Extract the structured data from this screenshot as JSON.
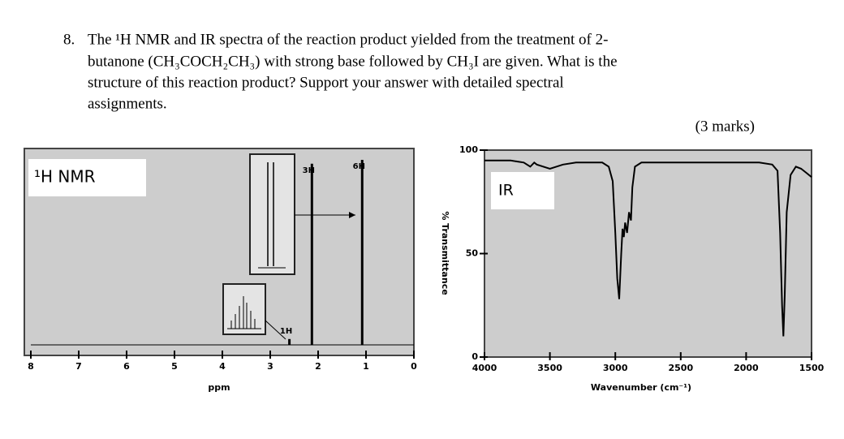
{
  "question": {
    "number": "8.",
    "lines": [
      "The ¹H NMR and IR spectra of the reaction product yielded from the treatment of 2-",
      "butanone (CH₃COCH₂CH₃) with strong base followed by CH₃I are given. What is the",
      "structure of this reaction product? Support your answer with detailed spectral",
      "assignments."
    ],
    "marks": "(3 marks)"
  },
  "chart_data": [
    {
      "type": "stem",
      "label": "¹H NMR",
      "xlabel": "ppm",
      "x": [
        2.6,
        2.13,
        1.08
      ],
      "values": [
        3,
        93,
        95
      ],
      "annotations": [
        "1H",
        "3H",
        "6H"
      ],
      "xlim": [
        8,
        0
      ],
      "xticks": [
        8,
        7,
        6,
        5,
        4,
        3,
        2,
        1,
        0
      ],
      "ylim": [
        0,
        100
      ],
      "color": "#000000"
    },
    {
      "type": "line",
      "label": "IR",
      "xlabel": "Wavenumber (cm⁻¹)",
      "ylabel": "% Transmittance",
      "x": [
        4000,
        3900,
        3800,
        3700,
        3650,
        3620,
        3600,
        3500,
        3400,
        3300,
        3200,
        3100,
        3050,
        3020,
        3000,
        2985,
        2970,
        2955,
        2945,
        2935,
        2925,
        2910,
        2895,
        2880,
        2870,
        2850,
        2800,
        2700,
        2600,
        2500,
        2400,
        2300,
        2200,
        2100,
        2000,
        1900,
        1800,
        1760,
        1740,
        1725,
        1715,
        1705,
        1690,
        1660,
        1620,
        1580,
        1540,
        1500
      ],
      "values": [
        95,
        95,
        95,
        94,
        92,
        94,
        93,
        91,
        93,
        94,
        94,
        94,
        92,
        85,
        60,
        38,
        28,
        50,
        62,
        58,
        65,
        60,
        70,
        66,
        82,
        92,
        94,
        94,
        94,
        94,
        94,
        94,
        94,
        94,
        94,
        94,
        93,
        90,
        60,
        25,
        10,
        30,
        70,
        88,
        92,
        91,
        89,
        87
      ],
      "xlim": [
        4000,
        1500
      ],
      "xticks": [
        4000,
        3500,
        3000,
        2500,
        2000,
        1500
      ],
      "ylim": [
        0,
        100
      ],
      "yticks": [
        0,
        50,
        100
      ],
      "color": "#000000"
    }
  ]
}
